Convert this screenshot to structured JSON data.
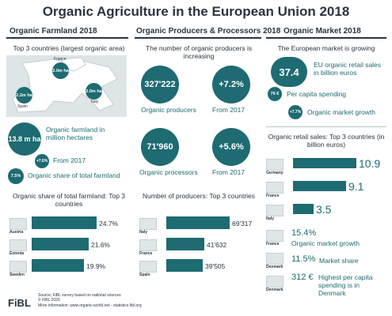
{
  "title": "Organic Agriculture in the European Union 2018",
  "headers": {
    "farmland": "Organic Farmland 2018",
    "producers": "Organic Producers & Processors 2018",
    "market": "Organic Market 2018"
  },
  "farmland": {
    "top3_title": "Top 3 countries (largest organic area)",
    "map": {
      "france_label": "France",
      "france_value": "2.0m ha",
      "spain_value": "2.2m ha",
      "spain_label": "Spain",
      "italy_value": "2.0m ha",
      "italy_label": "Italy"
    },
    "total_value": "13.8 m ha",
    "total_label": "Organic farmland in million hectares",
    "growth_value": "+7.6%",
    "growth_label": "From 2017",
    "share_value": "7.5%",
    "share_label": "Organic share of total farmland",
    "share_chart_title": "Organic share of total farmland: Top 3 countries",
    "share_countries": [
      {
        "name": "Austria",
        "value": "24.7%",
        "share": 24.7
      },
      {
        "name": "Estonia",
        "value": "21.6%",
        "share": 21.6
      },
      {
        "name": "Sweden",
        "value": "19.9%",
        "share": 19.9
      }
    ]
  },
  "producers": {
    "intro": "The number of organic producers is increasing",
    "producers_value": "327'222",
    "producers_label": "Organic producers",
    "producers_growth": "+7.2%",
    "producers_growth_label": "From 2017",
    "processors_value": "71'960",
    "processors_label": "Organic processors",
    "processors_growth": "+5.6%",
    "processors_growth_label": "From 2017",
    "chart_title": "Number of producers: Top 3 countries",
    "countries": [
      {
        "name": "Italy",
        "value": "69'317",
        "count": 69317
      },
      {
        "name": "France",
        "value": "41'632",
        "count": 41632
      },
      {
        "name": "Spain",
        "value": "39'505",
        "count": 39505
      }
    ]
  },
  "market": {
    "intro": "The European market is growing",
    "sales_value": "37.4",
    "sales_label": "EU organic retail sales in billion euros",
    "per_capita_value": "76 €",
    "per_capita_label": "Per capita spending",
    "growth_value": "+7.7%",
    "growth_label": "Organic market growth",
    "chart_title": "Organic retail sales: Top 3 countries (in billion euros)",
    "countries": [
      {
        "name": "Germany",
        "value": "10.9",
        "sales": 10.9
      },
      {
        "name": "France",
        "value": "9.1",
        "sales": 9.1
      },
      {
        "name": "Italy",
        "value": "3.5",
        "sales": 3.5
      }
    ],
    "stats": [
      {
        "country": "France",
        "value": "15.4%",
        "label": "Organic market growth"
      },
      {
        "country": "Denmark",
        "value": "11.5%",
        "label": "Market share"
      },
      {
        "country": "Denmark",
        "value": "312 €",
        "label": "Highest per capita spending is in Denmark"
      }
    ]
  },
  "footer": {
    "logo": "FiBL",
    "source": "Source: FiBL survey based on national sources",
    "copyright": "© FiBL 2020",
    "more": "More information: www.organic-world.net - statistics.fibl.org"
  },
  "colors": {
    "accent": "#1e6b72",
    "text": "#2a3540"
  }
}
